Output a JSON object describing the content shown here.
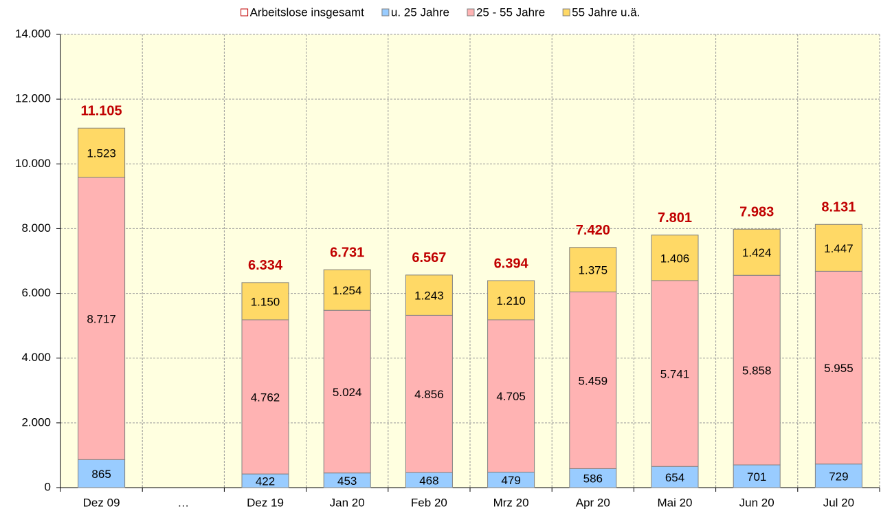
{
  "chart_data": {
    "type": "stacked_bar",
    "categories": [
      "Dez 09",
      "…",
      "Dez 19",
      "Jan 20",
      "Feb 20",
      "Mrz 20",
      "Apr 20",
      "Mai 20",
      "Jun 20",
      "Jul 20"
    ],
    "totals": {
      "name": "Arbeitslose insgesamt",
      "color": "#c00000",
      "values": [
        11105,
        null,
        6334,
        6731,
        6567,
        6394,
        7420,
        7801,
        7983,
        8131
      ],
      "value_labels": [
        "11.105",
        null,
        "6.334",
        "6.731",
        "6.567",
        "6.394",
        "7.420",
        "7.801",
        "7.983",
        "8.131"
      ]
    },
    "series": [
      {
        "name": "u. 25 Jahre",
        "color": "#99ccff",
        "values": [
          865,
          null,
          422,
          453,
          468,
          479,
          586,
          654,
          701,
          729
        ],
        "value_labels": [
          "865",
          null,
          "422",
          "453",
          "468",
          "479",
          "586",
          "654",
          "701",
          "729"
        ]
      },
      {
        "name": "25 - 55 Jahre",
        "color": "#ffb3b3",
        "values": [
          8717,
          null,
          4762,
          5024,
          4856,
          4705,
          5459,
          5741,
          5858,
          5955
        ],
        "value_labels": [
          "8.717",
          null,
          "4.762",
          "5.024",
          "4.856",
          "4.705",
          "5.459",
          "5.741",
          "5.858",
          "5.955"
        ]
      },
      {
        "name": "55 Jahre u.ä.",
        "color": "#ffd966",
        "values": [
          1523,
          null,
          1150,
          1254,
          1243,
          1210,
          1375,
          1406,
          1424,
          1447
        ],
        "value_labels": [
          "1.523",
          null,
          "1.150",
          "1.254",
          "1.243",
          "1.210",
          "1.375",
          "1.406",
          "1.424",
          "1.447"
        ]
      }
    ],
    "ylim": [
      0,
      14000
    ],
    "yticks": [
      {
        "value": 0,
        "label": "0"
      },
      {
        "value": 2000,
        "label": "2.000"
      },
      {
        "value": 4000,
        "label": "4.000"
      },
      {
        "value": 6000,
        "label": "6.000"
      },
      {
        "value": 8000,
        "label": "8.000"
      },
      {
        "value": 10000,
        "label": "10.000"
      },
      {
        "value": 12000,
        "label": "12.000"
      },
      {
        "value": 14000,
        "label": "14.000"
      }
    ],
    "grid": true
  }
}
